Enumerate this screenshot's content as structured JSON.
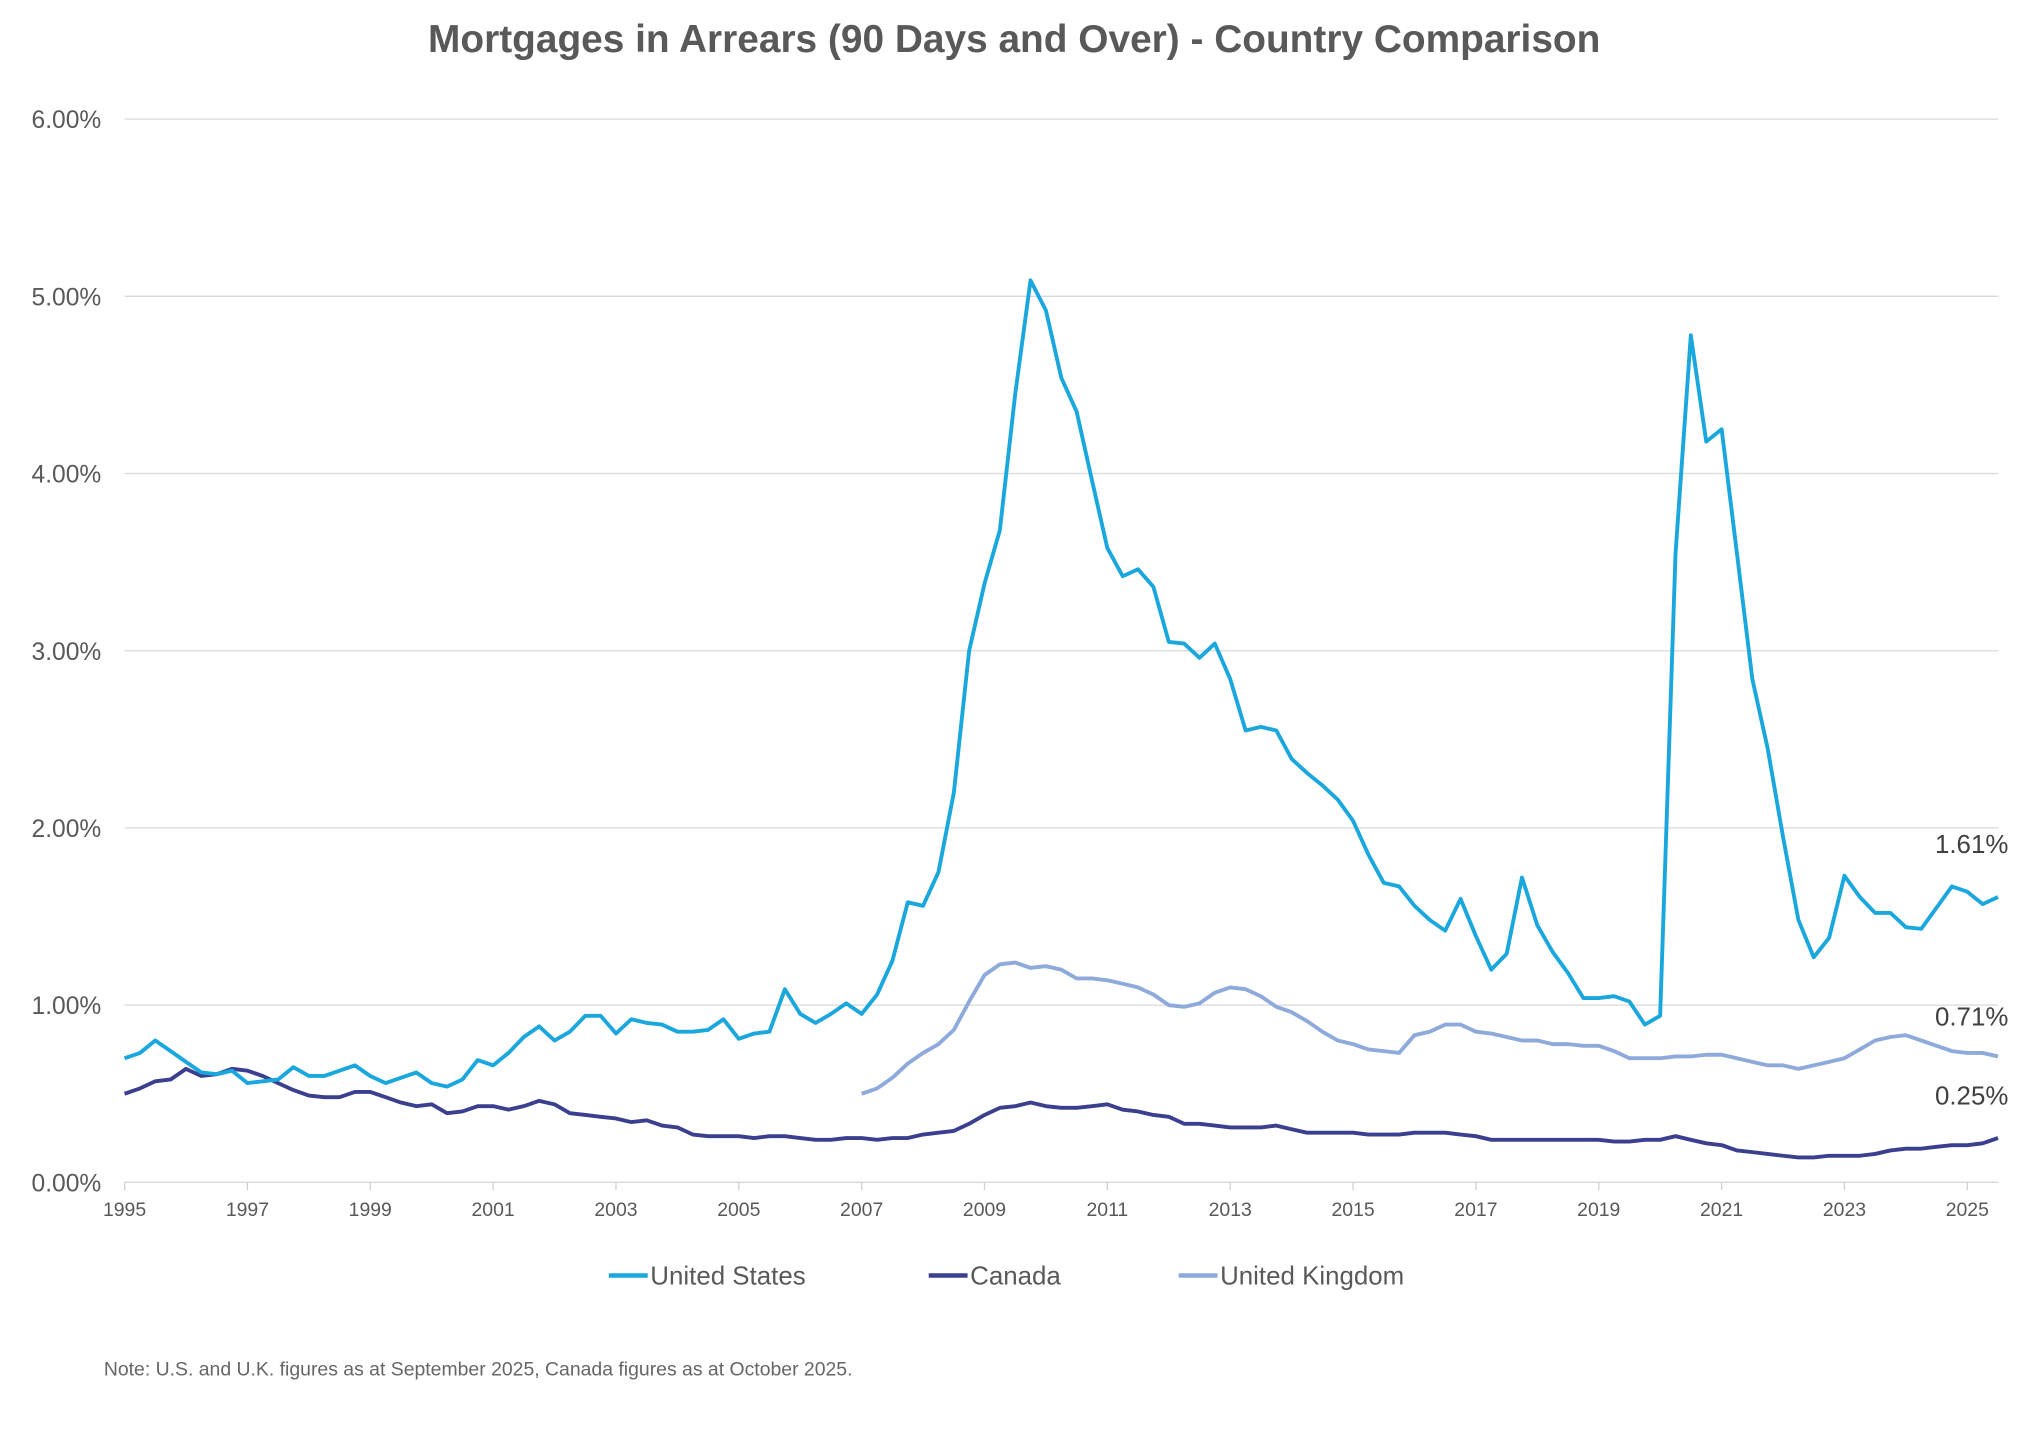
{
  "chart_data": {
    "type": "line",
    "title": "Mortgages in Arrears (90 Days and Over) - Country Comparison",
    "xlabel": "",
    "ylabel": "",
    "xlim": [
      1995,
      2025.5
    ],
    "ylim": [
      0,
      6
    ],
    "grid": true,
    "legend_position": "bottom",
    "y_ticks": [
      0,
      1,
      2,
      3,
      4,
      5,
      6
    ],
    "y_tick_labels": [
      "0.00%",
      "1.00%",
      "2.00%",
      "3.00%",
      "4.00%",
      "5.00%",
      "6.00%"
    ],
    "x_ticks": [
      1995,
      1997,
      1999,
      2001,
      2003,
      2005,
      2007,
      2009,
      2011,
      2013,
      2015,
      2017,
      2019,
      2021,
      2023,
      2025
    ],
    "x_tick_labels": [
      "1995",
      "1997",
      "1999",
      "2001",
      "2003",
      "2005",
      "2007",
      "2009",
      "2011",
      "2013",
      "2015",
      "2017",
      "2019",
      "2021",
      "2023",
      "2025"
    ],
    "series": [
      {
        "name": "United States",
        "color": "#1aa7dd",
        "start": 1995,
        "step": 0.25,
        "end_label": "1.61%",
        "values": [
          0.7,
          0.73,
          0.8,
          0.74,
          0.68,
          0.62,
          0.61,
          0.63,
          0.56,
          0.57,
          0.58,
          0.65,
          0.6,
          0.6,
          0.63,
          0.66,
          0.6,
          0.56,
          0.59,
          0.62,
          0.56,
          0.54,
          0.58,
          0.69,
          0.66,
          0.73,
          0.82,
          0.88,
          0.8,
          0.85,
          0.94,
          0.94,
          0.84,
          0.92,
          0.9,
          0.89,
          0.85,
          0.85,
          0.86,
          0.92,
          0.81,
          0.84,
          0.85,
          1.09,
          0.95,
          0.9,
          0.95,
          1.01,
          0.95,
          1.06,
          1.25,
          1.58,
          1.56,
          1.75,
          2.2,
          3.0,
          3.38,
          3.68,
          4.45,
          5.09,
          4.92,
          4.54,
          4.35,
          3.96,
          3.58,
          3.42,
          3.46,
          3.36,
          3.05,
          3.04,
          2.96,
          3.04,
          2.84,
          2.55,
          2.57,
          2.55,
          2.39,
          2.31,
          2.24,
          2.16,
          2.04,
          1.85,
          1.69,
          1.67,
          1.56,
          1.48,
          1.42,
          1.6,
          1.39,
          1.2,
          1.29,
          1.72,
          1.45,
          1.3,
          1.18,
          1.04,
          1.04,
          1.05,
          1.02,
          0.89,
          0.94,
          3.55,
          4.78,
          4.18,
          4.25,
          3.55,
          2.84,
          2.45,
          1.95,
          1.48,
          1.27,
          1.38,
          1.73,
          1.61,
          1.52,
          1.52,
          1.44,
          1.43,
          1.55,
          1.67,
          1.64,
          1.57,
          1.61
        ]
      },
      {
        "name": "Canada",
        "color": "#3a3f8f",
        "start": 1995,
        "step": 0.25,
        "end_label": "0.25%",
        "values": [
          0.5,
          0.53,
          0.57,
          0.58,
          0.64,
          0.6,
          0.61,
          0.64,
          0.63,
          0.6,
          0.56,
          0.52,
          0.49,
          0.48,
          0.48,
          0.51,
          0.51,
          0.48,
          0.45,
          0.43,
          0.44,
          0.39,
          0.4,
          0.43,
          0.43,
          0.41,
          0.43,
          0.46,
          0.44,
          0.39,
          0.38,
          0.37,
          0.36,
          0.34,
          0.35,
          0.32,
          0.31,
          0.27,
          0.26,
          0.26,
          0.26,
          0.25,
          0.26,
          0.26,
          0.25,
          0.24,
          0.24,
          0.25,
          0.25,
          0.24,
          0.25,
          0.25,
          0.27,
          0.28,
          0.29,
          0.33,
          0.38,
          0.42,
          0.43,
          0.45,
          0.43,
          0.42,
          0.42,
          0.43,
          0.44,
          0.41,
          0.4,
          0.38,
          0.37,
          0.33,
          0.33,
          0.32,
          0.31,
          0.31,
          0.31,
          0.32,
          0.3,
          0.28,
          0.28,
          0.28,
          0.28,
          0.27,
          0.27,
          0.27,
          0.28,
          0.28,
          0.28,
          0.27,
          0.26,
          0.24,
          0.24,
          0.24,
          0.24,
          0.24,
          0.24,
          0.24,
          0.24,
          0.23,
          0.23,
          0.24,
          0.24,
          0.26,
          0.24,
          0.22,
          0.21,
          0.18,
          0.17,
          0.16,
          0.15,
          0.14,
          0.14,
          0.15,
          0.15,
          0.15,
          0.16,
          0.18,
          0.19,
          0.19,
          0.2,
          0.21,
          0.21,
          0.22,
          0.25
        ]
      },
      {
        "name": "United Kingdom",
        "color": "#8eaadb",
        "start": 2007,
        "step": 0.25,
        "end_label": "0.71%",
        "values": [
          0.5,
          0.53,
          0.59,
          0.67,
          0.73,
          0.78,
          0.86,
          1.02,
          1.17,
          1.23,
          1.24,
          1.21,
          1.22,
          1.2,
          1.15,
          1.15,
          1.14,
          1.12,
          1.1,
          1.06,
          1.0,
          0.99,
          1.01,
          1.07,
          1.1,
          1.09,
          1.05,
          0.99,
          0.96,
          0.91,
          0.85,
          0.8,
          0.78,
          0.75,
          0.74,
          0.73,
          0.83,
          0.85,
          0.89,
          0.89,
          0.85,
          0.84,
          0.82,
          0.8,
          0.8,
          0.78,
          0.78,
          0.77,
          0.77,
          0.74,
          0.7,
          0.7,
          0.7,
          0.71,
          0.71,
          0.72,
          0.72,
          0.7,
          0.68,
          0.66,
          0.66,
          0.64,
          0.66,
          0.68,
          0.7,
          0.75,
          0.8,
          0.82,
          0.83,
          0.8,
          0.77,
          0.74,
          0.73,
          0.73,
          0.71
        ]
      }
    ],
    "note": "Note: U.S. and U.K. figures as at September 2025, Canada figures as at October 2025."
  }
}
